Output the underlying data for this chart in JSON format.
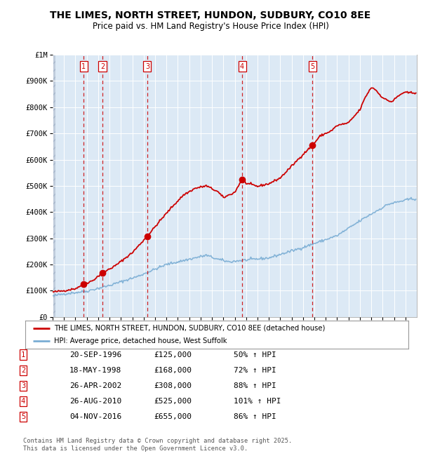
{
  "title": "THE LIMES, NORTH STREET, HUNDON, SUDBURY, CO10 8EE",
  "subtitle": "Price paid vs. HM Land Registry's House Price Index (HPI)",
  "legend_line1": "THE LIMES, NORTH STREET, HUNDON, SUDBURY, CO10 8EE (detached house)",
  "legend_line2": "HPI: Average price, detached house, West Suffolk",
  "footer1": "Contains HM Land Registry data © Crown copyright and database right 2025.",
  "footer2": "This data is licensed under the Open Government Licence v3.0.",
  "sales": [
    {
      "num": 1,
      "date_num": 1996.722,
      "price": 125000,
      "label": "20-SEP-1996",
      "pct": "50% ↑ HPI"
    },
    {
      "num": 2,
      "date_num": 1998.375,
      "price": 168000,
      "label": "18-MAY-1998",
      "pct": "72% ↑ HPI"
    },
    {
      "num": 3,
      "date_num": 2002.319,
      "price": 308000,
      "label": "26-APR-2002",
      "pct": "88% ↑ HPI"
    },
    {
      "num": 4,
      "date_num": 2010.652,
      "price": 525000,
      "label": "26-AUG-2010",
      "pct": "101% ↑ HPI"
    },
    {
      "num": 5,
      "date_num": 2016.843,
      "price": 655000,
      "label": "04-NOV-2016",
      "pct": "86% ↑ HPI"
    }
  ],
  "price_color": "#cc0000",
  "hpi_color": "#7aadd4",
  "plot_bg_color": "#dce9f5",
  "ylim": [
    0,
    1000000
  ],
  "yticks": [
    0,
    100000,
    200000,
    300000,
    400000,
    500000,
    600000,
    700000,
    800000,
    900000,
    1000000
  ],
  "ytick_labels": [
    "£0",
    "£100K",
    "£200K",
    "£300K",
    "£400K",
    "£500K",
    "£600K",
    "£700K",
    "£800K",
    "£900K",
    "£1M"
  ],
  "xmin": 1994.0,
  "xmax": 2026.0
}
